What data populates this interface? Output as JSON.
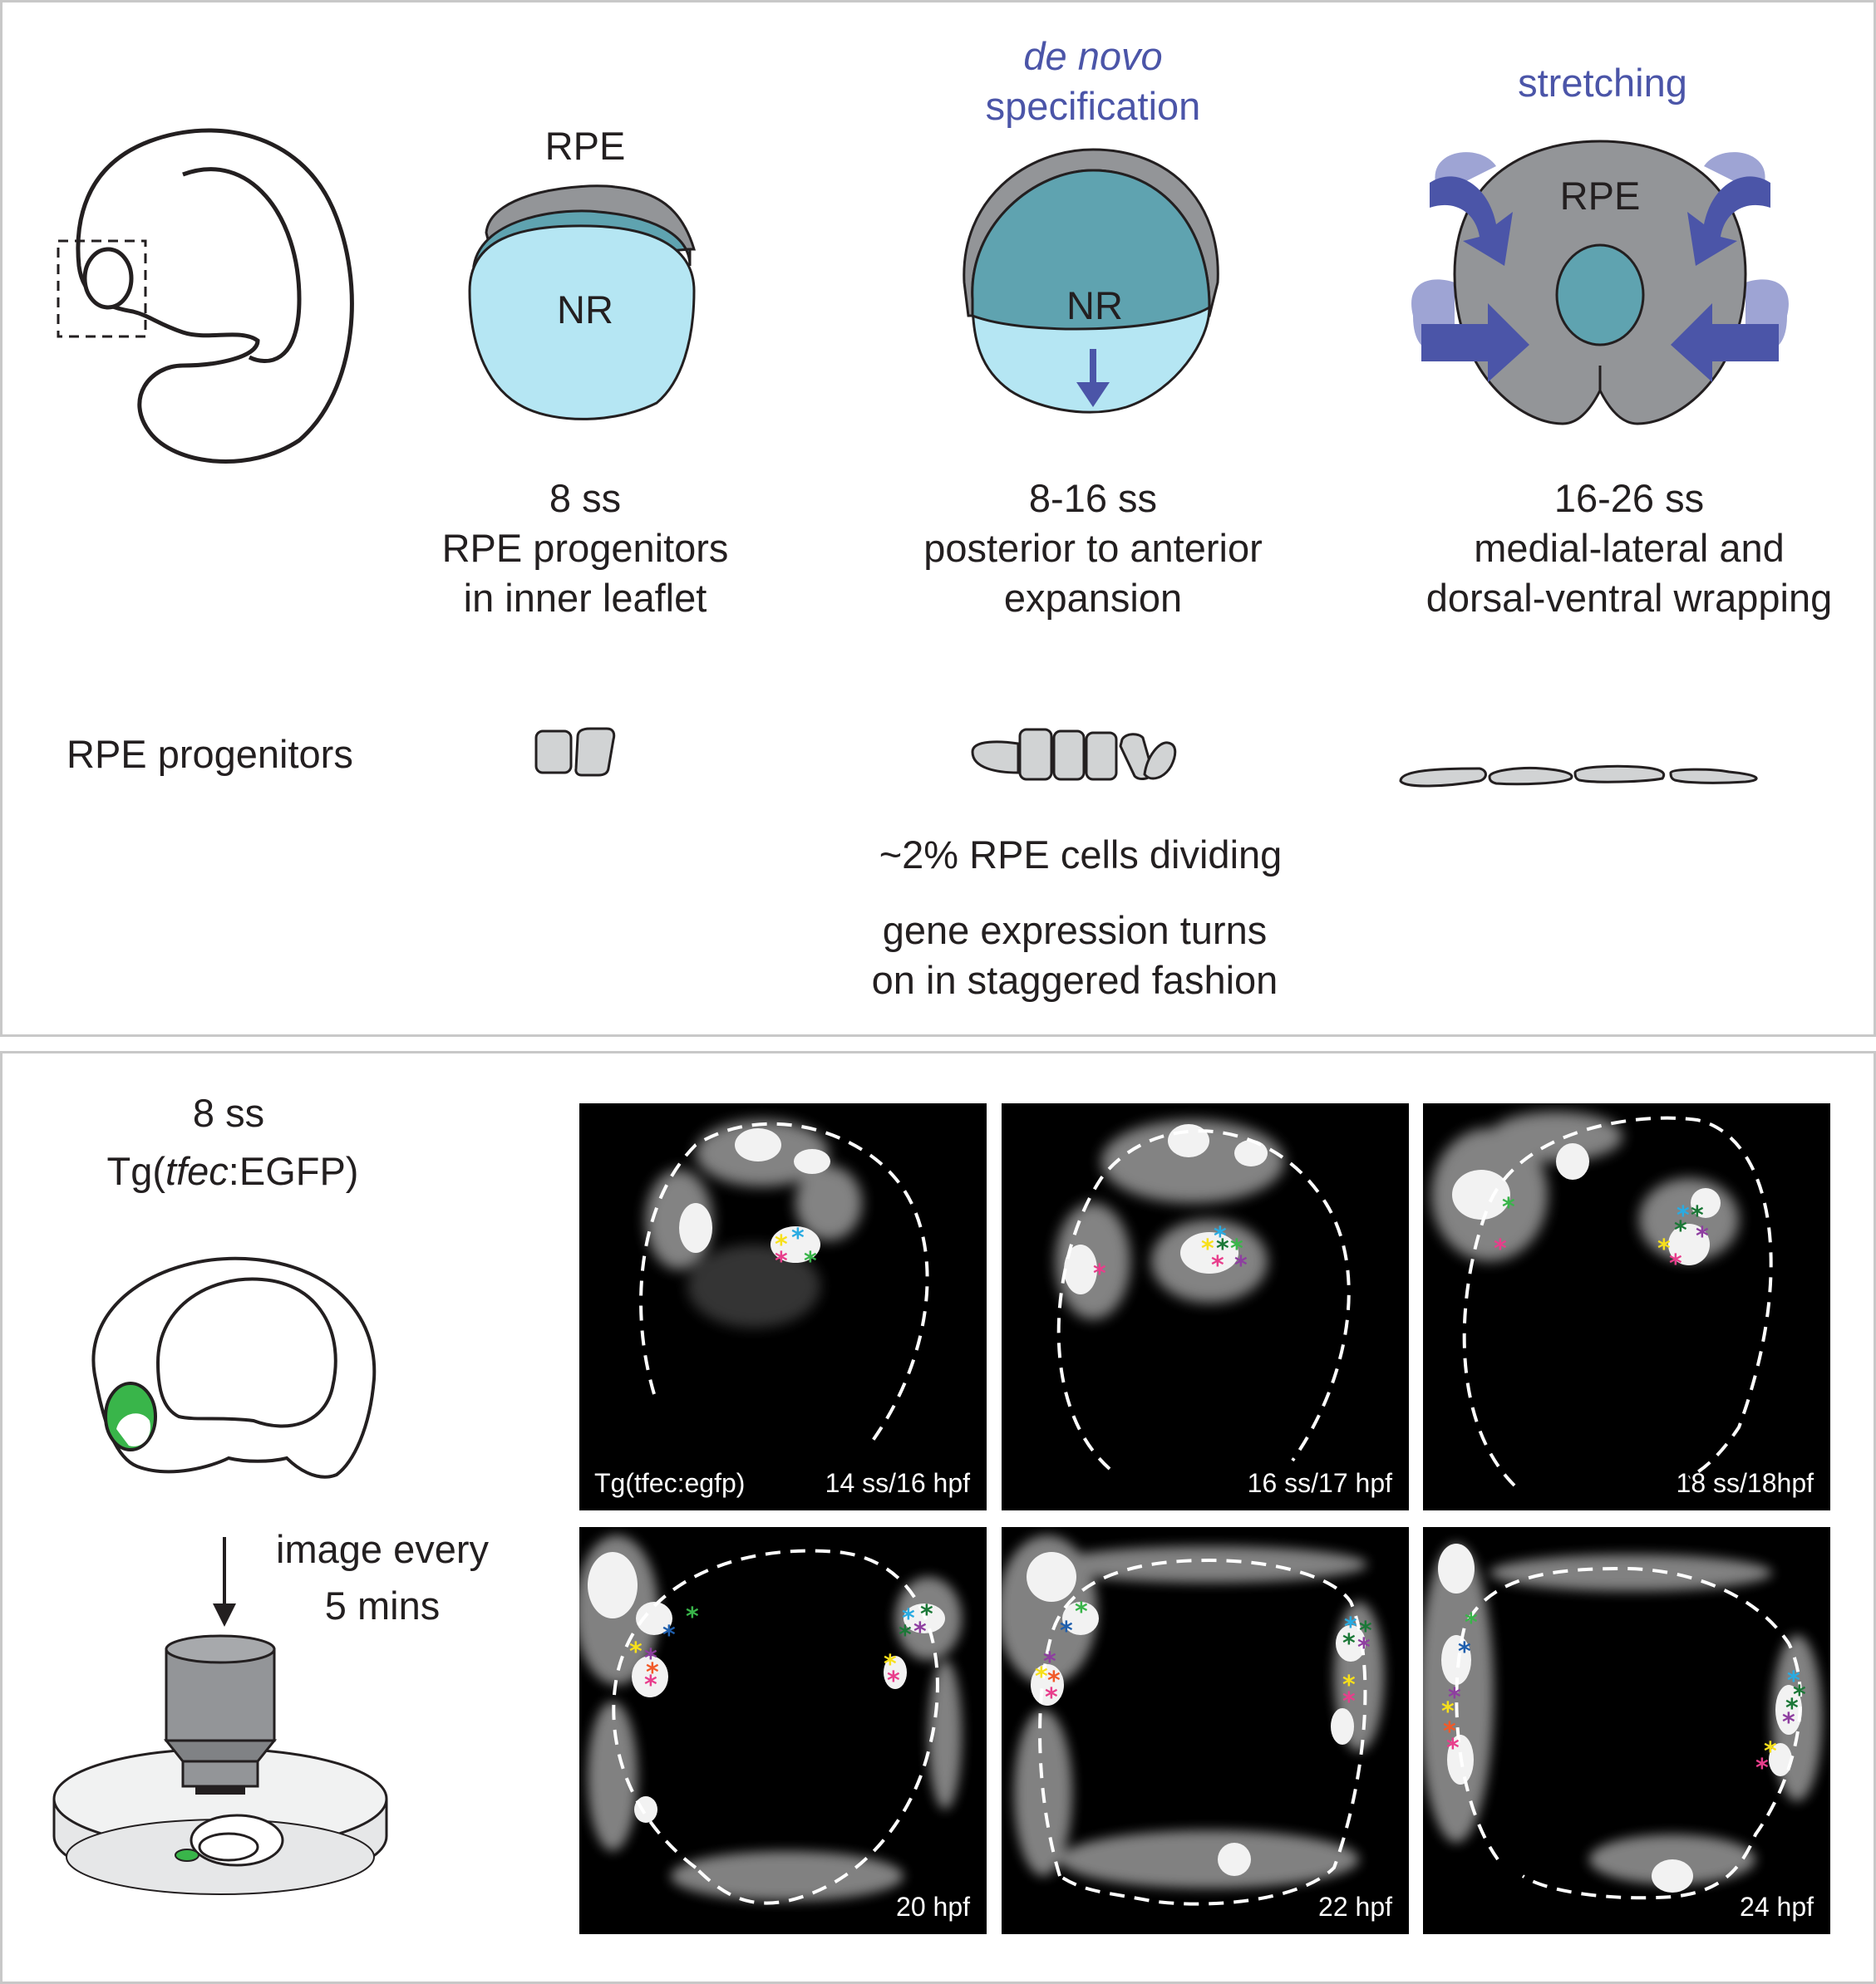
{
  "top_panel": {
    "stage1": {
      "label": "RPE",
      "inner": "NR",
      "ss": "8 ss",
      "line1": "RPE progenitors",
      "line2": "in inner leaflet"
    },
    "stage2": {
      "heading1": "de novo",
      "heading2": "specification",
      "inner": "NR",
      "ss": "8-16 ss",
      "line1": "posterior to anterior",
      "line2": "expansion"
    },
    "stage3": {
      "heading": "stretching",
      "inner": "RPE",
      "ss": "16-26 ss",
      "line1": "medial-lateral and",
      "line2": "dorsal-ventral wrapping"
    },
    "progenitors_label": "RPE progenitors",
    "dividing": "~2% RPE cells dividing",
    "gene_line1": "gene expression turns",
    "gene_line2": "on in staggered fashion"
  },
  "bottom_panel": {
    "stage": "8 ss",
    "tg_prefix": "Tg(",
    "tg_italic": "tfec",
    "tg_suffix": ":EGFP)",
    "imaging_line1": "image every",
    "imaging_line2": "5 mins",
    "images": [
      {
        "left_caption": "Tg(tfec:egfp)",
        "right_caption": "14 ss/16 hpf"
      },
      {
        "left_caption": "",
        "right_caption": "16 ss/17 hpf"
      },
      {
        "left_caption": "",
        "right_caption": "18 ss/18hpf"
      },
      {
        "left_caption": "",
        "right_caption": "20 hpf"
      },
      {
        "left_caption": "",
        "right_caption": "22 hpf"
      },
      {
        "left_caption": "",
        "right_caption": "24 hpf"
      }
    ]
  },
  "colors": {
    "rpe_gray": "#939598",
    "nr_light": "#b5e6f3",
    "nr_teal": "#5fa3b0",
    "arrow_blue": "#4b55a8",
    "egfp_green": "#39b54a",
    "marker_colors": [
      "#f7e01b",
      "#e83e8c",
      "#29abe2",
      "#1b7837",
      "#8e3ea0",
      "#39b54a",
      "#f15a29",
      "#1f5fae"
    ]
  }
}
